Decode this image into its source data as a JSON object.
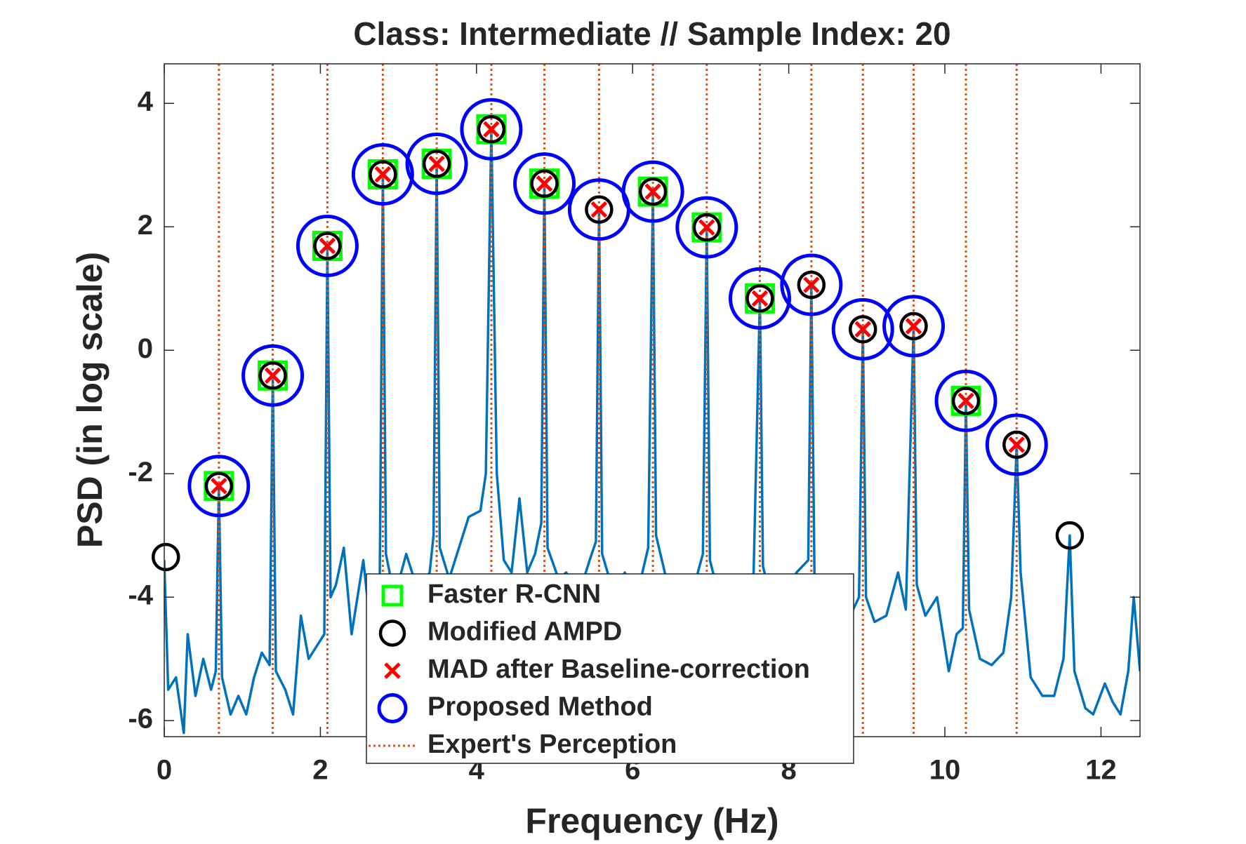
{
  "chart_data": {
    "type": "peak-detection",
    "title": "Class: Intermediate  //  Sample Index: 20",
    "x_label": "Frequency (Hz)",
    "y_label": "PSD (in log scale)",
    "xlim": [
      0,
      12.5
    ],
    "ylim": [
      -6.26,
      4.64
    ],
    "xticks": [
      0,
      2,
      4,
      6,
      8,
      10,
      12
    ],
    "yticks": [
      -6,
      -4,
      -2,
      0,
      2,
      4
    ],
    "signal": {
      "color": "#0072bd",
      "x": [
        0,
        0.05,
        0.15,
        0.25,
        0.3,
        0.4,
        0.5,
        0.6,
        0.66,
        0.7,
        0.74,
        0.85,
        0.95,
        1.05,
        1.15,
        1.25,
        1.35,
        1.39,
        1.43,
        1.55,
        1.65,
        1.75,
        1.85,
        1.95,
        2.05,
        2.09,
        2.13,
        2.2,
        2.3,
        2.4,
        2.55,
        2.65,
        2.76,
        2.8,
        2.84,
        2.95,
        3.1,
        3.25,
        3.4,
        3.45,
        3.49,
        3.53,
        3.65,
        3.8,
        3.9,
        4.05,
        4.12,
        4.19,
        4.26,
        4.35,
        4.45,
        4.55,
        4.65,
        4.75,
        4.83,
        4.87,
        4.91,
        5.05,
        5.15,
        5.3,
        5.45,
        5.53,
        5.57,
        5.61,
        5.75,
        5.9,
        6.05,
        6.2,
        6.26,
        6.3,
        6.45,
        6.6,
        6.75,
        6.9,
        6.95,
        6.99,
        7.15,
        7.3,
        7.45,
        7.55,
        7.63,
        7.67,
        7.8,
        7.95,
        8.1,
        8.25,
        8.29,
        8.33,
        8.45,
        8.6,
        8.75,
        8.9,
        8.95,
        8.99,
        9.1,
        9.25,
        9.4,
        9.5,
        9.6,
        9.64,
        9.75,
        9.9,
        10.05,
        10.15,
        10.23,
        10.27,
        10.31,
        10.45,
        10.6,
        10.75,
        10.85,
        10.92,
        10.97,
        11.1,
        11.25,
        11.4,
        11.52,
        11.6,
        11.66,
        11.8,
        11.9,
        12.05,
        12.15,
        12.25,
        12.35,
        12.42,
        12.5
      ],
      "values": [
        -3.4,
        -5.5,
        -5.3,
        -6.2,
        -4.6,
        -5.6,
        -5.0,
        -5.5,
        -5.2,
        -2.2,
        -5.3,
        -5.9,
        -5.6,
        -5.9,
        -5.3,
        -4.9,
        -5.1,
        -0.41,
        -5.2,
        -5.5,
        -5.9,
        -4.3,
        -5.0,
        -4.8,
        -4.6,
        1.69,
        -4.0,
        -3.8,
        -3.2,
        -4.6,
        -3.4,
        -4.6,
        -3.8,
        2.85,
        -3.3,
        -4.0,
        -3.3,
        -3.9,
        -3.6,
        -3.0,
        3.02,
        -3.2,
        -3.7,
        -3.1,
        -2.7,
        -2.6,
        -2.0,
        3.58,
        -2.0,
        -3.4,
        -3.6,
        -2.4,
        -3.6,
        -3.3,
        -2.8,
        2.7,
        -3.2,
        -3.7,
        -3.6,
        -4.0,
        -3.4,
        -3.1,
        2.28,
        -3.3,
        -3.9,
        -3.6,
        -4.0,
        -3.2,
        2.57,
        -3.0,
        -3.8,
        -3.7,
        -4.0,
        -3.3,
        1.99,
        -3.4,
        -4.2,
        -3.9,
        -4.0,
        -3.6,
        0.84,
        -3.5,
        -4.2,
        -3.9,
        -3.6,
        -3.4,
        1.06,
        -3.7,
        -4.3,
        -3.9,
        -4.4,
        -4.0,
        0.34,
        -4.0,
        -4.4,
        -4.3,
        -3.6,
        -4.2,
        0.39,
        -3.8,
        -4.3,
        -4.0,
        -5.2,
        -4.6,
        -4.5,
        -0.82,
        -4.2,
        -5.0,
        -5.1,
        -4.9,
        -4.0,
        -1.53,
        -3.6,
        -5.3,
        -5.6,
        -5.6,
        -5.0,
        -3.0,
        -5.2,
        -5.8,
        -5.9,
        -5.4,
        -5.7,
        -5.9,
        -5.2,
        -4.0,
        -5.2
      ]
    },
    "series": [
      {
        "name": "Faster R-CNN",
        "marker": "square",
        "color": "#00ff00",
        "x": [
          0.7,
          1.39,
          2.09,
          2.8,
          3.49,
          4.19,
          4.87,
          6.26,
          6.95,
          7.63,
          10.27
        ],
        "values": [
          -2.2,
          -0.41,
          1.69,
          2.85,
          3.02,
          3.58,
          2.7,
          2.57,
          1.99,
          0.84,
          -0.82
        ]
      },
      {
        "name": "Modified AMPD",
        "marker": "circle",
        "color": "#000000",
        "x": [
          0.02,
          0.7,
          1.39,
          2.09,
          2.8,
          3.49,
          4.19,
          4.87,
          5.57,
          6.26,
          6.95,
          7.63,
          8.29,
          8.95,
          9.6,
          10.27,
          10.92,
          11.6
        ],
        "values": [
          -3.35,
          -2.2,
          -0.41,
          1.69,
          2.85,
          3.02,
          3.58,
          2.7,
          2.28,
          2.57,
          1.99,
          0.84,
          1.06,
          0.34,
          0.39,
          -0.82,
          -1.53,
          -3.0
        ]
      },
      {
        "name": "MAD after Baseline-correction",
        "marker": "x",
        "color": "#ff0000",
        "x": [
          0.7,
          1.39,
          2.09,
          2.8,
          3.49,
          4.19,
          4.87,
          5.57,
          6.26,
          6.95,
          7.63,
          8.29,
          8.95,
          9.6,
          10.27,
          10.92
        ],
        "values": [
          -2.2,
          -0.41,
          1.69,
          2.85,
          3.02,
          3.58,
          2.7,
          2.28,
          2.57,
          1.99,
          0.84,
          1.06,
          0.34,
          0.39,
          -0.82,
          -1.53
        ]
      },
      {
        "name": "Proposed Method",
        "marker": "big-circle",
        "color": "#0000ff",
        "x": [
          0.7,
          1.39,
          2.09,
          2.8,
          3.49,
          4.19,
          4.87,
          5.57,
          6.26,
          6.95,
          7.63,
          8.29,
          8.95,
          9.6,
          10.27,
          10.92
        ],
        "values": [
          -2.2,
          -0.41,
          1.69,
          2.85,
          3.02,
          3.58,
          2.7,
          2.28,
          2.57,
          1.99,
          0.84,
          1.06,
          0.34,
          0.39,
          -0.82,
          -1.53
        ]
      },
      {
        "name": "Expert's Perception",
        "marker": "vline",
        "color": "#d95319",
        "x": [
          0.7,
          1.39,
          2.09,
          2.8,
          3.49,
          4.19,
          4.87,
          5.57,
          6.26,
          6.95,
          7.63,
          8.29,
          8.95,
          9.6,
          10.27,
          10.92
        ]
      }
    ]
  }
}
